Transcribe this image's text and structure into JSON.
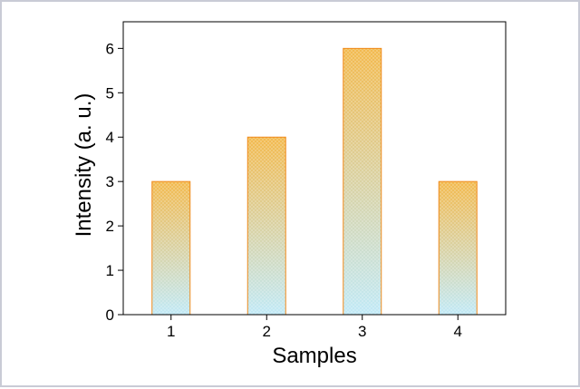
{
  "chart_data": {
    "type": "bar",
    "title": "",
    "xlabel": "Samples",
    "ylabel": "Intensity (a. u.)",
    "categories": [
      "1",
      "2",
      "3",
      "4"
    ],
    "values": [
      3,
      4,
      6,
      3
    ],
    "ylim": [
      0,
      6.6
    ],
    "yticks": [
      0,
      1,
      2,
      3,
      4,
      5,
      6
    ],
    "grid": false,
    "legend": "none",
    "colors": {
      "bar_top": "#f2b84a",
      "bar_bottom": "#bfe9f7",
      "bar_edge": "#f08a1c",
      "frame": "#c9cbd6"
    }
  }
}
